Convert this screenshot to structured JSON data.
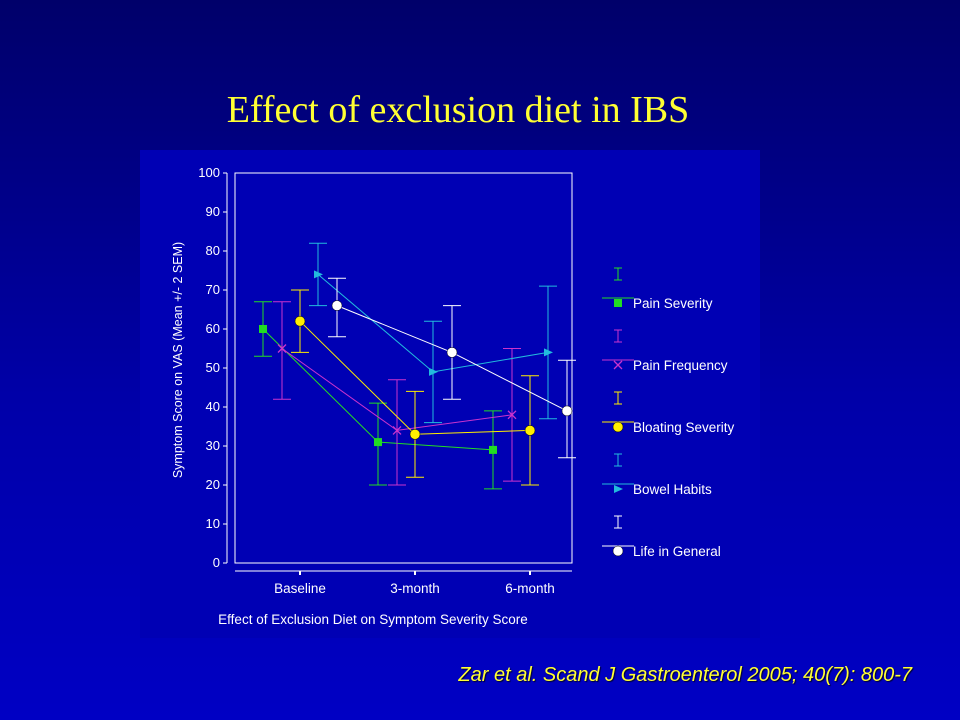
{
  "slide": {
    "title": "Effect of exclusion diet in IBS",
    "citation": "Zar et al. Scand J Gastroenterol 2005; 40(7): 800-7"
  },
  "colors": {
    "background": "#0000a8",
    "chart_panel": "#0000b4",
    "title": "#ffff33",
    "axis": "#ffffff"
  },
  "chart_data": {
    "type": "line",
    "xlabel": "Effect of Exclusion Diet on Symptom Severity Score",
    "ylabel": "Symptom Score on VAS (Mean +/- 2 SEM)",
    "categories": [
      "Baseline",
      "3-month",
      "6-month"
    ],
    "ylim": [
      0,
      100
    ],
    "yticks": [
      0,
      10,
      20,
      30,
      40,
      50,
      60,
      70,
      80,
      90,
      100
    ],
    "grid": false,
    "legend_position": "right",
    "error_bars": "Mean +/- 2 SEM",
    "series": [
      {
        "name": "Pain Severity",
        "marker": "square",
        "color": "#22dd22",
        "values": [
          60,
          31,
          29
        ],
        "lower": [
          53,
          20,
          19
        ],
        "upper": [
          67,
          41,
          39
        ]
      },
      {
        "name": "Pain Frequency",
        "marker": "x",
        "color": "#cc33cc",
        "values": [
          55,
          34,
          38
        ],
        "lower": [
          42,
          20,
          21
        ],
        "upper": [
          67,
          47,
          55
        ]
      },
      {
        "name": "Bloating Severity",
        "marker": "circle",
        "color": "#ffee00",
        "values": [
          62,
          33,
          34
        ],
        "lower": [
          54,
          22,
          20
        ],
        "upper": [
          70,
          44,
          48
        ]
      },
      {
        "name": "Bowel Habits",
        "marker": "triangle",
        "color": "#22bbdd",
        "values": [
          74,
          49,
          54
        ],
        "lower": [
          66,
          36,
          37
        ],
        "upper": [
          82,
          62,
          71
        ]
      },
      {
        "name": "Life in General",
        "marker": "circle",
        "color": "#ffffff",
        "values": [
          66,
          54,
          39
        ],
        "lower": [
          58,
          42,
          27
        ],
        "upper": [
          73,
          66,
          52
        ]
      }
    ]
  }
}
